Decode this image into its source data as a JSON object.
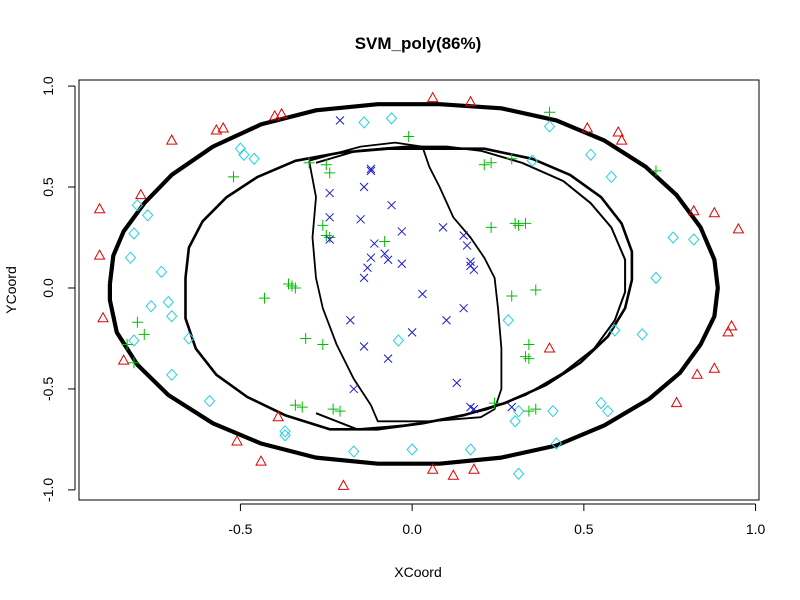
{
  "chart_data": {
    "type": "scatter",
    "title": "SVM_poly(86%)",
    "xlabel": "XCoord",
    "ylabel": "YCoord",
    "xlim": [
      -0.97,
      1.01
    ],
    "ylim": [
      -1.05,
      1.03
    ],
    "xticks": [
      -0.5,
      0.0,
      0.5,
      1.0
    ],
    "xtick_labels": [
      "-0.5",
      "0.0",
      "0.5",
      "1.0"
    ],
    "yticks": [
      -1.0,
      -0.5,
      0.0,
      0.5,
      1.0
    ],
    "ytick_labels": [
      "-1.0",
      "-0.5",
      "0.0",
      "0.5",
      "1.0"
    ],
    "grid": false,
    "legend": "none",
    "series": [
      {
        "marker": "triangle",
        "color": "#df0000",
        "points": [
          [
            0.06,
            0.94
          ],
          [
            0.17,
            0.92
          ],
          [
            -0.57,
            0.78
          ],
          [
            -0.55,
            0.79
          ],
          [
            -0.7,
            0.73
          ],
          [
            -0.4,
            0.85
          ],
          [
            -0.38,
            0.86
          ],
          [
            0.51,
            0.79
          ],
          [
            0.6,
            0.77
          ],
          [
            0.61,
            0.73
          ],
          [
            -0.79,
            0.46
          ],
          [
            -0.91,
            0.39
          ],
          [
            0.82,
            0.38
          ],
          [
            0.88,
            0.37
          ],
          [
            0.95,
            0.29
          ],
          [
            -0.91,
            0.16
          ],
          [
            -0.9,
            -0.15
          ],
          [
            0.93,
            -0.19
          ],
          [
            0.92,
            -0.22
          ],
          [
            -0.84,
            -0.36
          ],
          [
            0.4,
            -0.3
          ],
          [
            0.88,
            -0.4
          ],
          [
            0.83,
            -0.43
          ],
          [
            0.77,
            -0.57
          ],
          [
            -0.39,
            -0.64
          ],
          [
            -0.51,
            -0.76
          ],
          [
            -0.44,
            -0.86
          ],
          [
            0.06,
            -0.9
          ],
          [
            0.12,
            -0.93
          ],
          [
            0.18,
            -0.9
          ],
          [
            -0.2,
            -0.98
          ]
        ]
      },
      {
        "marker": "diamond",
        "color": "#22d3e0",
        "points": [
          [
            -0.14,
            0.82
          ],
          [
            -0.06,
            0.84
          ],
          [
            0.4,
            0.8
          ],
          [
            -0.5,
            0.69
          ],
          [
            -0.49,
            0.66
          ],
          [
            -0.46,
            0.64
          ],
          [
            0.35,
            0.63
          ],
          [
            0.52,
            0.66
          ],
          [
            0.58,
            0.55
          ],
          [
            -0.8,
            0.41
          ],
          [
            -0.77,
            0.36
          ],
          [
            -0.81,
            0.27
          ],
          [
            -0.82,
            0.15
          ],
          [
            -0.73,
            0.08
          ],
          [
            0.76,
            0.25
          ],
          [
            0.82,
            0.24
          ],
          [
            0.71,
            0.05
          ],
          [
            -0.76,
            -0.09
          ],
          [
            -0.71,
            -0.07
          ],
          [
            -0.7,
            -0.14
          ],
          [
            -0.81,
            -0.26
          ],
          [
            -0.65,
            -0.25
          ],
          [
            -0.04,
            -0.26
          ],
          [
            0.28,
            -0.16
          ],
          [
            0.59,
            -0.21
          ],
          [
            0.67,
            -0.23
          ],
          [
            -0.7,
            -0.43
          ],
          [
            0.55,
            -0.57
          ],
          [
            0.57,
            -0.61
          ],
          [
            -0.59,
            -0.56
          ],
          [
            0.41,
            -0.61
          ],
          [
            0.31,
            -0.61
          ],
          [
            0.3,
            -0.66
          ],
          [
            -0.37,
            -0.71
          ],
          [
            -0.37,
            -0.73
          ],
          [
            0.0,
            -0.8
          ],
          [
            0.17,
            -0.8
          ],
          [
            0.42,
            -0.77
          ],
          [
            0.31,
            -0.92
          ],
          [
            -0.17,
            -0.81
          ]
        ]
      },
      {
        "marker": "plus",
        "color": "#00bb00",
        "points": [
          [
            0.4,
            0.87
          ],
          [
            -0.01,
            0.75
          ],
          [
            0.23,
            0.62
          ],
          [
            0.21,
            0.61
          ],
          [
            0.29,
            0.64
          ],
          [
            -0.3,
            0.62
          ],
          [
            -0.25,
            0.61
          ],
          [
            -0.24,
            0.57
          ],
          [
            0.71,
            0.58
          ],
          [
            -0.52,
            0.55
          ],
          [
            -0.26,
            0.31
          ],
          [
            -0.25,
            0.26
          ],
          [
            -0.24,
            0.25
          ],
          [
            -0.08,
            0.23
          ],
          [
            0.23,
            0.3
          ],
          [
            0.3,
            0.32
          ],
          [
            0.33,
            0.32
          ],
          [
            0.31,
            0.31
          ],
          [
            -0.36,
            0.02
          ],
          [
            -0.35,
            0.01
          ],
          [
            -0.34,
            0.0
          ],
          [
            0.29,
            -0.04
          ],
          [
            0.36,
            -0.01
          ],
          [
            -0.31,
            -0.25
          ],
          [
            -0.26,
            -0.28
          ],
          [
            0.34,
            -0.28
          ],
          [
            0.33,
            -0.34
          ],
          [
            0.34,
            -0.35
          ],
          [
            -0.8,
            -0.17
          ],
          [
            -0.78,
            -0.23
          ],
          [
            -0.83,
            -0.28
          ],
          [
            -0.81,
            -0.37
          ],
          [
            -0.34,
            -0.58
          ],
          [
            -0.32,
            -0.59
          ],
          [
            -0.23,
            -0.6
          ],
          [
            -0.21,
            -0.61
          ],
          [
            0.24,
            -0.57
          ],
          [
            0.34,
            -0.61
          ],
          [
            0.36,
            -0.6
          ],
          [
            -0.43,
            -0.05
          ]
        ]
      },
      {
        "marker": "cross",
        "color": "#1b1bd0",
        "points": [
          [
            -0.21,
            0.83
          ],
          [
            -0.12,
            0.59
          ],
          [
            -0.12,
            0.58
          ],
          [
            -0.14,
            0.5
          ],
          [
            -0.24,
            0.47
          ],
          [
            -0.24,
            0.35
          ],
          [
            -0.15,
            0.34
          ],
          [
            -0.06,
            0.41
          ],
          [
            -0.24,
            0.24
          ],
          [
            -0.11,
            0.22
          ],
          [
            -0.12,
            0.15
          ],
          [
            -0.08,
            0.17
          ],
          [
            -0.07,
            0.14
          ],
          [
            -0.03,
            0.28
          ],
          [
            0.09,
            0.3
          ],
          [
            0.15,
            0.26
          ],
          [
            0.16,
            0.21
          ],
          [
            0.17,
            0.13
          ],
          [
            0.17,
            0.11
          ],
          [
            0.18,
            0.09
          ],
          [
            -0.13,
            0.1
          ],
          [
            -0.03,
            0.12
          ],
          [
            -0.14,
            0.05
          ],
          [
            0.03,
            -0.03
          ],
          [
            0.15,
            -0.1
          ],
          [
            0.1,
            -0.16
          ],
          [
            -0.18,
            -0.16
          ],
          [
            -0.14,
            -0.29
          ],
          [
            0.0,
            -0.22
          ],
          [
            -0.07,
            -0.35
          ],
          [
            0.13,
            -0.47
          ],
          [
            -0.17,
            -0.5
          ],
          [
            0.17,
            -0.59
          ],
          [
            0.18,
            -0.6
          ],
          [
            0.29,
            -0.59
          ]
        ]
      }
    ],
    "boundaries": [
      {
        "stroke_width": 4.2,
        "points": [
          [
            -0.88,
            0.02
          ],
          [
            -0.87,
            0.16
          ],
          [
            -0.84,
            0.28
          ],
          [
            -0.78,
            0.42
          ],
          [
            -0.7,
            0.56
          ],
          [
            -0.58,
            0.7
          ],
          [
            -0.44,
            0.81
          ],
          [
            -0.28,
            0.88
          ],
          [
            -0.1,
            0.91
          ],
          [
            0.08,
            0.91
          ],
          [
            0.26,
            0.89
          ],
          [
            0.42,
            0.83
          ],
          [
            0.56,
            0.73
          ],
          [
            0.68,
            0.6
          ],
          [
            0.77,
            0.46
          ],
          [
            0.84,
            0.3
          ],
          [
            0.88,
            0.14
          ],
          [
            0.89,
            0.0
          ],
          [
            0.88,
            -0.14
          ],
          [
            0.84,
            -0.28
          ],
          [
            0.78,
            -0.42
          ],
          [
            0.69,
            -0.55
          ],
          [
            0.56,
            -0.68
          ],
          [
            0.42,
            -0.78
          ],
          [
            0.26,
            -0.84
          ],
          [
            0.08,
            -0.87
          ],
          [
            -0.1,
            -0.87
          ],
          [
            -0.28,
            -0.84
          ],
          [
            -0.44,
            -0.77
          ],
          [
            -0.58,
            -0.67
          ],
          [
            -0.71,
            -0.53
          ],
          [
            -0.8,
            -0.38
          ],
          [
            -0.86,
            -0.22
          ],
          [
            -0.88,
            -0.06
          ],
          [
            -0.88,
            0.02
          ]
        ]
      },
      {
        "stroke_width": 2.6,
        "points": [
          [
            -0.66,
            0.05
          ],
          [
            -0.65,
            0.2
          ],
          [
            -0.61,
            0.33
          ],
          [
            -0.54,
            0.45
          ],
          [
            -0.45,
            0.55
          ],
          [
            -0.34,
            0.63
          ],
          [
            -0.21,
            0.67
          ],
          [
            -0.07,
            0.69
          ],
          [
            0.07,
            0.69
          ],
          [
            0.21,
            0.69
          ],
          [
            0.35,
            0.64
          ],
          [
            0.46,
            0.56
          ],
          [
            0.55,
            0.45
          ],
          [
            0.61,
            0.32
          ],
          [
            0.64,
            0.18
          ],
          [
            0.64,
            0.04
          ],
          [
            0.62,
            -0.1
          ],
          [
            0.57,
            -0.24
          ],
          [
            0.49,
            -0.37
          ],
          [
            0.39,
            -0.48
          ],
          [
            0.27,
            -0.57
          ],
          [
            0.15,
            -0.63
          ],
          [
            0.03,
            -0.67
          ],
          [
            -0.1,
            -0.7
          ],
          [
            -0.24,
            -0.7
          ],
          [
            -0.37,
            -0.63
          ],
          [
            -0.48,
            -0.54
          ],
          [
            -0.57,
            -0.43
          ],
          [
            -0.63,
            -0.3
          ],
          [
            -0.66,
            -0.15
          ],
          [
            -0.66,
            0.05
          ]
        ]
      },
      {
        "stroke_width": 2.0,
        "points": [
          [
            -0.28,
            0.62
          ],
          [
            -0.16,
            0.68
          ],
          [
            -0.02,
            0.7
          ],
          [
            0.1,
            0.7
          ],
          [
            0.2,
            0.68
          ],
          [
            0.32,
            0.62
          ],
          [
            0.44,
            0.53
          ],
          [
            0.52,
            0.42
          ],
          [
            0.58,
            0.3
          ],
          [
            0.62,
            0.14
          ],
          [
            0.62,
            -0.02
          ],
          [
            0.59,
            -0.16
          ],
          [
            0.53,
            -0.3
          ],
          [
            0.44,
            -0.42
          ],
          [
            0.33,
            -0.53
          ],
          [
            0.22,
            -0.6
          ],
          [
            0.1,
            -0.65
          ],
          [
            -0.02,
            -0.68
          ],
          [
            -0.16,
            -0.7
          ],
          [
            -0.28,
            -0.62
          ]
        ]
      },
      {
        "stroke_width": 1.8,
        "points": [
          [
            -0.3,
            0.63
          ],
          [
            -0.28,
            0.45
          ],
          [
            -0.29,
            0.25
          ],
          [
            -0.28,
            0.05
          ],
          [
            -0.26,
            -0.1
          ],
          [
            -0.22,
            -0.28
          ],
          [
            -0.17,
            -0.45
          ],
          [
            -0.12,
            -0.58
          ],
          [
            -0.1,
            -0.66
          ],
          [
            0.05,
            -0.66
          ],
          [
            0.2,
            -0.64
          ],
          [
            0.24,
            -0.6
          ],
          [
            0.26,
            -0.5
          ],
          [
            0.26,
            -0.3
          ],
          [
            0.25,
            -0.1
          ],
          [
            0.24,
            0.05
          ],
          [
            0.21,
            0.15
          ],
          [
            0.17,
            0.25
          ],
          [
            0.12,
            0.35
          ],
          [
            0.08,
            0.5
          ],
          [
            0.05,
            0.6
          ],
          [
            0.03,
            0.7
          ],
          [
            -0.05,
            0.72
          ],
          [
            -0.15,
            0.7
          ],
          [
            -0.3,
            0.63
          ]
        ]
      }
    ]
  }
}
